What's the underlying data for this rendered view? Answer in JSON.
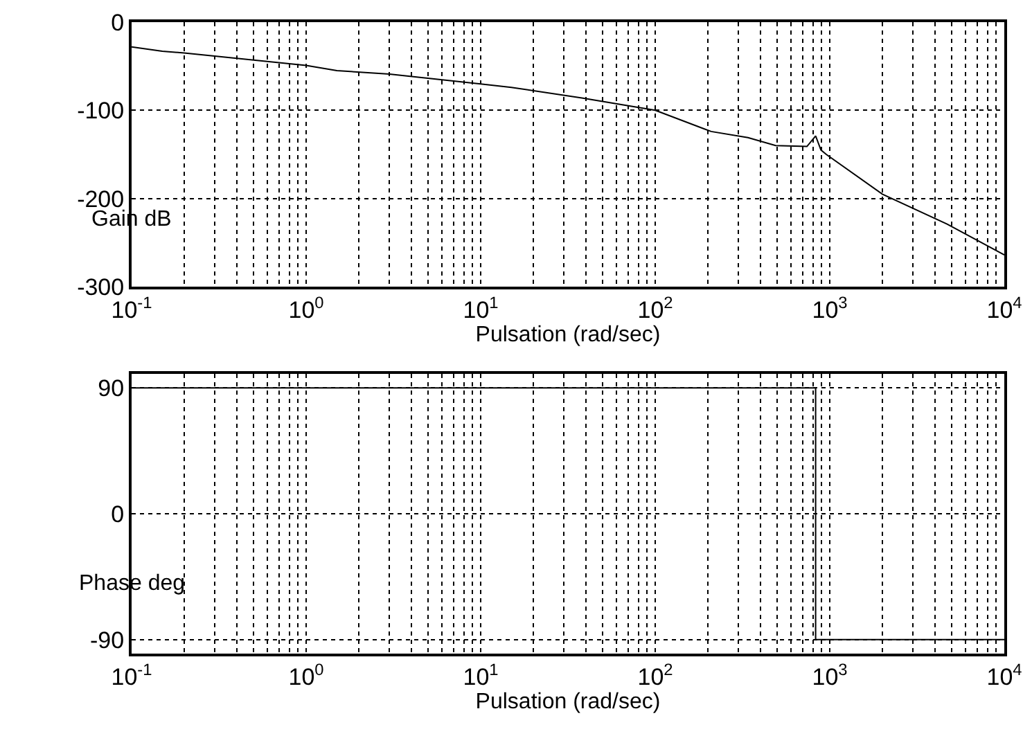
{
  "chart_data": [
    {
      "type": "line",
      "xlabel": "Pulsation (rad/sec)",
      "ylabel": "Gain dB",
      "log": "x",
      "grid": true,
      "marker": "none",
      "line_style": "solid",
      "series": [
        {
          "color": "#000000",
          "x": [
            0.1,
            0.15,
            0.2,
            1,
            1.5,
            3,
            10,
            15,
            38,
            100,
            209,
            340,
            490,
            740,
            830,
            890,
            955,
            2000,
            4700,
            10000
          ],
          "values": [
            -28,
            -33,
            -35,
            -49,
            -55,
            -59,
            -70,
            -74,
            -86,
            -100,
            -124,
            -131,
            -140,
            -141,
            -129,
            -145,
            -150,
            -195,
            -229,
            -264
          ]
        }
      ],
      "xlim": [
        0.1,
        10000
      ],
      "xticks": [
        {
          "value": 0.1,
          "label": "10$^{-1}$"
        },
        {
          "value": 1,
          "label": "10$^{0}$"
        },
        {
          "value": 10,
          "label": "10$^{1}$"
        },
        {
          "value": 100,
          "label": "10$^{2}$"
        },
        {
          "value": 1000,
          "label": "10$^{3}$"
        },
        {
          "value": 10000,
          "label": "10$^{4}$"
        }
      ],
      "ylim": [
        -300,
        0
      ],
      "yticks": [
        -300,
        -200,
        -100,
        0
      ]
    },
    {
      "type": "line",
      "xlabel": "Pulsation (rad/sec)",
      "ylabel": "Phase deg",
      "log": "x",
      "grid": true,
      "marker": "none",
      "line_style": "solid",
      "series": [
        {
          "color": "#000000",
          "x": [
            0.1,
            830,
            830,
            10000
          ],
          "values": [
            90,
            90,
            -90,
            -90
          ]
        }
      ],
      "xlim": [
        0.1,
        10000
      ],
      "xticks": [
        {
          "value": 0.1,
          "label": "10$^{-1}$"
        },
        {
          "value": 1,
          "label": "10$^{0}$"
        },
        {
          "value": 10,
          "label": "10$^{1}$"
        },
        {
          "value": 100,
          "label": "10$^{2}$"
        },
        {
          "value": 1000,
          "label": "10$^{3}$"
        },
        {
          "value": 10000,
          "label": "10$^{4}$"
        }
      ],
      "ylim": [
        -100,
        100
      ],
      "yticks": [
        -90,
        0,
        90
      ]
    }
  ]
}
